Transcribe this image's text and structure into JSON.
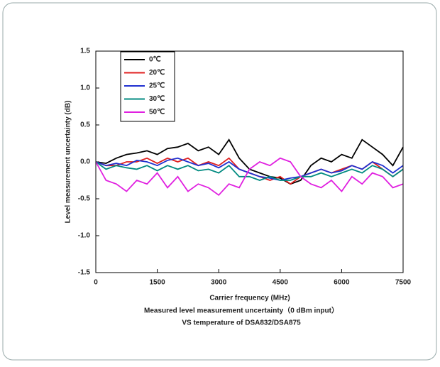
{
  "chart_data": {
    "type": "line",
    "xlabel": "Carrier frequency (MHz)",
    "ylabel": "Level measurement uncertainty (dB)",
    "caption": [
      "Measured level measurement uncertainty（0 dBm input）",
      "VS temperature of DSA832/DSA875"
    ],
    "x": [
      0,
      250,
      500,
      750,
      1000,
      1250,
      1500,
      1750,
      2000,
      2250,
      2500,
      2750,
      3000,
      3250,
      3500,
      3750,
      4000,
      4250,
      4500,
      4750,
      5000,
      5250,
      5500,
      5750,
      6000,
      6250,
      6500,
      6750,
      7000,
      7250,
      7500
    ],
    "series": [
      {
        "name": "0℃",
        "color": "#000000",
        "values": [
          0,
          -0.02,
          0.05,
          0.1,
          0.12,
          0.15,
          0.1,
          0.18,
          0.2,
          0.25,
          0.15,
          0.2,
          0.1,
          0.3,
          0.05,
          -0.1,
          -0.15,
          -0.2,
          -0.22,
          -0.3,
          -0.25,
          -0.05,
          0.05,
          0.0,
          0.1,
          0.05,
          0.3,
          0.2,
          0.1,
          -0.05,
          0.2
        ]
      },
      {
        "name": "20℃",
        "color": "#e02020",
        "values": [
          0,
          -0.05,
          -0.05,
          0.0,
          0.0,
          0.05,
          -0.02,
          0.05,
          0.0,
          0.05,
          -0.05,
          0.0,
          -0.05,
          0.05,
          -0.1,
          -0.15,
          -0.2,
          -0.25,
          -0.2,
          -0.3,
          -0.2,
          -0.15,
          -0.1,
          -0.15,
          -0.1,
          -0.05,
          -0.1,
          0.0,
          -0.1,
          -0.2,
          -0.1
        ]
      },
      {
        "name": "25℃",
        "color": "#2030d0",
        "values": [
          0,
          -0.05,
          -0.02,
          -0.05,
          0.02,
          0.0,
          -0.05,
          0.02,
          0.05,
          0.0,
          -0.05,
          -0.02,
          -0.08,
          0.0,
          -0.1,
          -0.15,
          -0.2,
          -0.22,
          -0.25,
          -0.22,
          -0.2,
          -0.15,
          -0.1,
          -0.15,
          -0.12,
          -0.05,
          -0.1,
          0.0,
          -0.05,
          -0.15,
          -0.05
        ]
      },
      {
        "name": "30℃",
        "color": "#008a80",
        "values": [
          0,
          -0.1,
          -0.05,
          -0.08,
          -0.1,
          -0.05,
          -0.12,
          -0.05,
          -0.1,
          -0.05,
          -0.12,
          -0.1,
          -0.15,
          -0.05,
          -0.2,
          -0.2,
          -0.25,
          -0.2,
          -0.25,
          -0.25,
          -0.2,
          -0.2,
          -0.15,
          -0.2,
          -0.15,
          -0.1,
          -0.15,
          -0.05,
          -0.1,
          -0.2,
          -0.1
        ]
      },
      {
        "name": "50℃",
        "color": "#e020e0",
        "values": [
          0,
          -0.25,
          -0.3,
          -0.4,
          -0.25,
          -0.3,
          -0.15,
          -0.35,
          -0.2,
          -0.4,
          -0.3,
          -0.35,
          -0.45,
          -0.3,
          -0.35,
          -0.1,
          0.0,
          -0.05,
          0.05,
          0.0,
          -0.2,
          -0.3,
          -0.35,
          -0.25,
          -0.4,
          -0.2,
          -0.3,
          -0.15,
          -0.2,
          -0.35,
          -0.3
        ]
      }
    ],
    "xlim": [
      0,
      7500
    ],
    "xticks": [
      0,
      1500,
      3000,
      4500,
      6000,
      7500
    ],
    "ylim": [
      -1.5,
      1.5
    ],
    "yticks": [
      -1.5,
      {
        "value": -1,
        "label": "-1.0"
      },
      -0.5,
      {
        "value": 0,
        "label": "0.0"
      },
      0.5,
      {
        "value": 1,
        "label": "1.0"
      },
      1.5
    ],
    "grid": false,
    "legend": "upper left"
  }
}
